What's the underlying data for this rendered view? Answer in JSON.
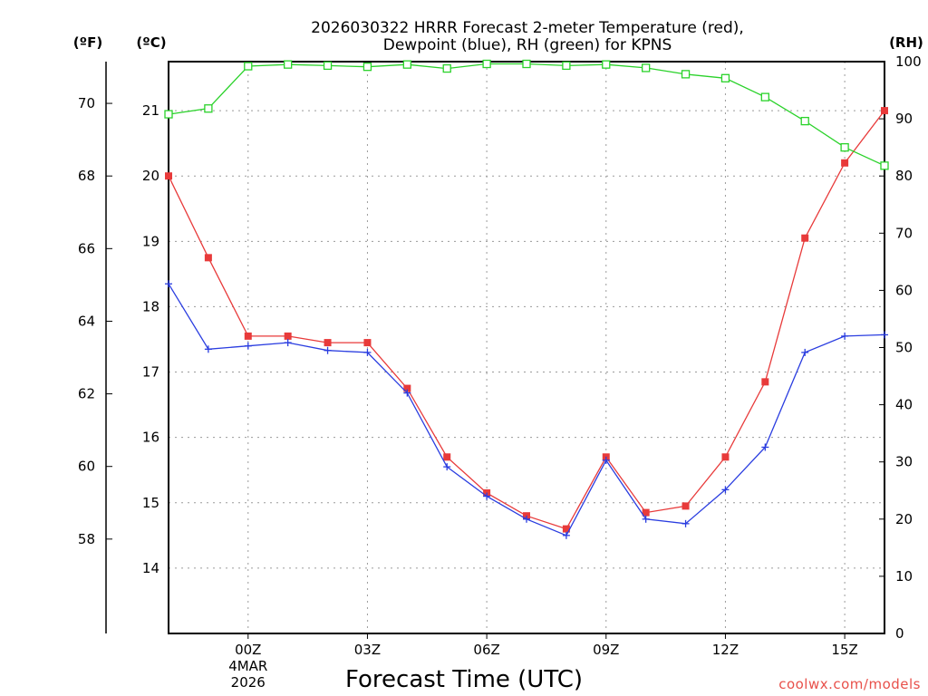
{
  "chart_data": {
    "type": "line",
    "title_line1": "2026030322 HRRR Forecast 2-meter Temperature (red),",
    "title_line2": "Dewpoint (blue), RH (green) for KPNS",
    "units": {
      "fahrenheit": "(ºF)",
      "celsius": "(ºC)",
      "rh": "(RH)"
    },
    "xlabel": "Forecast Time (UTC)",
    "x_hours": [
      -2,
      -1,
      0,
      1,
      2,
      3,
      4,
      5,
      6,
      7,
      8,
      9,
      10,
      11,
      12,
      13,
      14,
      15,
      16
    ],
    "x_range": [
      -2,
      16
    ],
    "x_ticks": [
      {
        "hour": 0,
        "label": "00Z",
        "sub1": "4MAR",
        "sub2": "2026"
      },
      {
        "hour": 3,
        "label": "03Z"
      },
      {
        "hour": 6,
        "label": "06Z"
      },
      {
        "hour": 9,
        "label": "09Z"
      },
      {
        "hour": 12,
        "label": "12Z"
      },
      {
        "hour": 15,
        "label": "15Z"
      }
    ],
    "celsius_range": [
      13.0,
      21.75
    ],
    "celsius_ticks": [
      14,
      15,
      16,
      17,
      18,
      19,
      20,
      21
    ],
    "fahrenheit_ticks": [
      58,
      60,
      62,
      64,
      66,
      68,
      70
    ],
    "rh_range": [
      0,
      100
    ],
    "rh_ticks": [
      0,
      10,
      20,
      30,
      40,
      50,
      60,
      70,
      80,
      90,
      100
    ],
    "series": [
      {
        "name": "Temperature",
        "color": "#e83a3a",
        "marker": "filled-square",
        "axis": "celsius",
        "values": [
          20.0,
          18.75,
          17.55,
          17.55,
          17.45,
          17.45,
          16.75,
          15.7,
          15.15,
          14.8,
          14.6,
          15.7,
          14.85,
          14.95,
          15.7,
          16.85,
          19.05,
          20.2,
          21.0
        ]
      },
      {
        "name": "Dewpoint",
        "color": "#2a3de0",
        "marker": "plus",
        "axis": "celsius",
        "values": [
          18.35,
          17.35,
          17.4,
          17.45,
          17.33,
          17.3,
          16.68,
          15.55,
          15.1,
          14.75,
          14.5,
          15.65,
          14.75,
          14.68,
          15.2,
          15.85,
          17.3,
          17.55,
          17.57
        ]
      },
      {
        "name": "RH",
        "color": "#2ad22a",
        "marker": "open-square",
        "axis": "rh",
        "values": [
          90.8,
          91.8,
          99.2,
          99.5,
          99.3,
          99.1,
          99.5,
          98.8,
          99.6,
          99.6,
          99.3,
          99.5,
          98.9,
          97.8,
          97.1,
          93.8,
          89.6,
          85.0,
          81.8
        ]
      }
    ],
    "credit": "coolwx.com/models"
  }
}
